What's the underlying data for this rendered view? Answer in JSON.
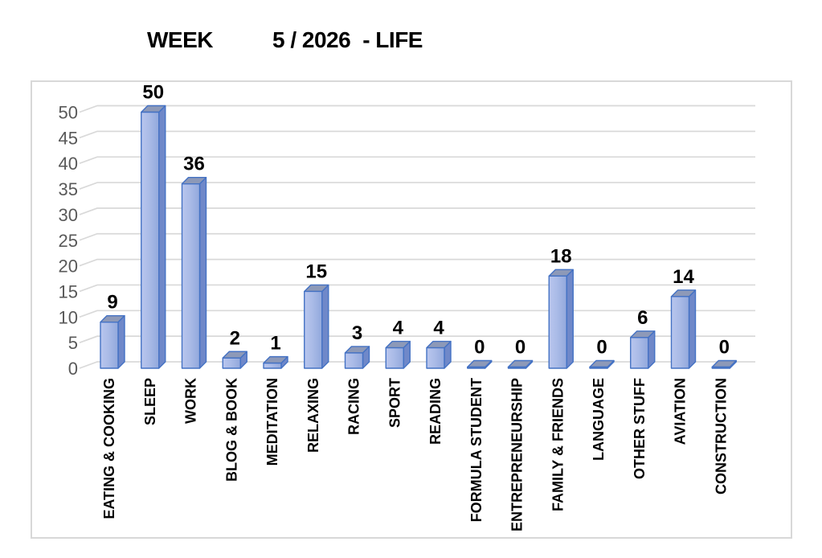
{
  "page": {
    "background": "#ffffff"
  },
  "title": {
    "part1": "WEEK",
    "part2": "5 / 2026",
    "part3": "- LIFE"
  },
  "chart_data": {
    "type": "bar",
    "style": "3d-column",
    "title": "WEEK 5 / 2026 - LIFE",
    "categories": [
      "EATING & COOKING",
      "SLEEP",
      "WORK",
      "BLOG & BOOK",
      "MEDITATION",
      "RELAXING",
      "RACING",
      "SPORT",
      "READING",
      "FORMULA STUDENT",
      "ENTREPRENEURSHIP",
      "FAMILY & FRIENDS",
      "LANGUAGE",
      "OTHER STUFF",
      "AVIATION",
      "CONSTRUCTION"
    ],
    "values": [
      9,
      50,
      36,
      2,
      1,
      15,
      3,
      4,
      4,
      0,
      0,
      18,
      0,
      6,
      14,
      0
    ],
    "xlabel": "",
    "ylabel": "",
    "ylim": [
      0,
      50
    ],
    "ytick_step": 5,
    "yticks": [
      0,
      5,
      10,
      15,
      20,
      25,
      30,
      35,
      40,
      45,
      50
    ],
    "grid": true,
    "legend": false,
    "data_labels": true
  },
  "colors": {
    "bar_front_start": "#b9c6ee",
    "bar_front_mid": "#aabbe7",
    "bar_front_end": "#92a8dc",
    "bar_top": "#8d99b8",
    "bar_side": "#6f88c9",
    "bar_border": "#4472c4",
    "gridline": "#d9d9d9",
    "chart_border": "#d8d8d8",
    "tick_label_color": "#595959",
    "label_color": "#000000",
    "title_color": "#000000"
  }
}
